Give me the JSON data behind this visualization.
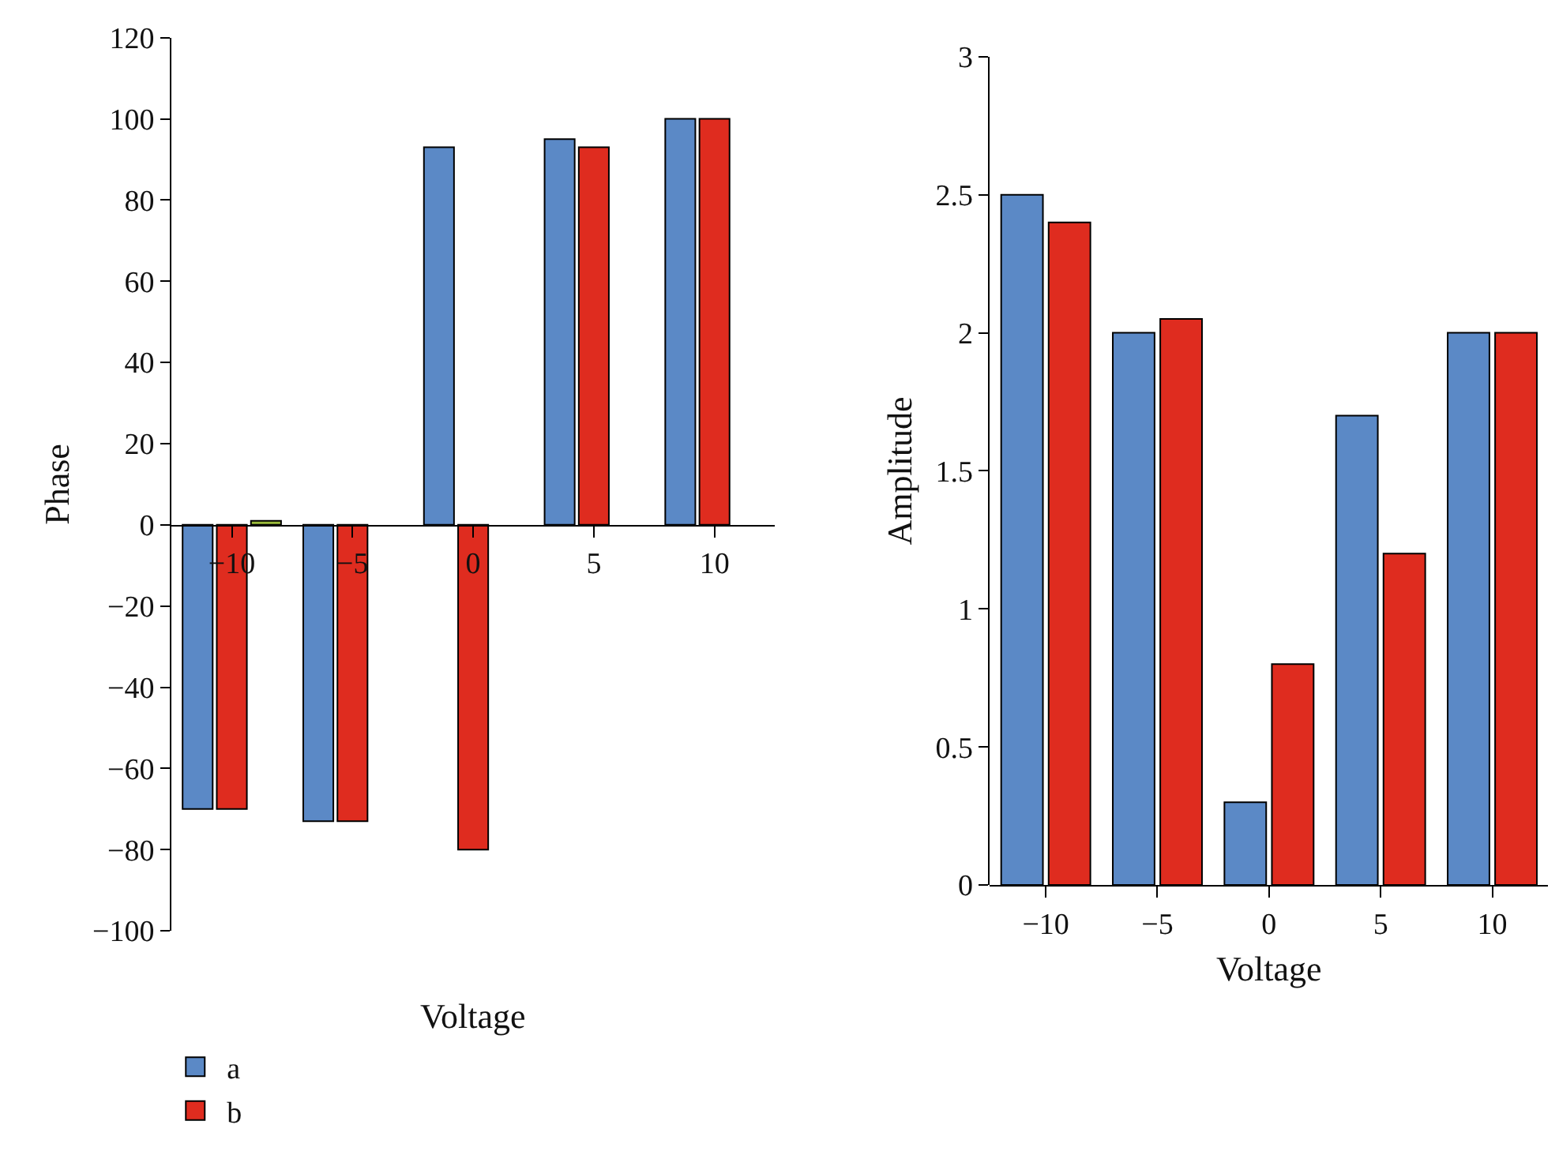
{
  "chart_data": [
    {
      "type": "bar",
      "xlabel": "Voltage",
      "ylabel": "Phase",
      "categories": [
        "−10",
        "−5",
        "0",
        "5",
        "10"
      ],
      "ylim": [
        -100,
        120
      ],
      "yticks": [
        {
          "value": -100,
          "label": "−100"
        },
        {
          "value": -80,
          "label": "−80"
        },
        {
          "value": -60,
          "label": "−60"
        },
        {
          "value": -40,
          "label": "−40"
        },
        {
          "value": -20,
          "label": "−20"
        },
        0,
        20,
        40,
        60,
        80,
        100,
        120
      ],
      "legend": "bottom left",
      "series": [
        {
          "name": "a",
          "color": "#5b89c6",
          "values": [
            -70,
            -73,
            93,
            95,
            100
          ]
        },
        {
          "name": "b",
          "color": "#df2c1f",
          "values": [
            -70,
            -73,
            -80,
            93,
            100
          ]
        },
        {
          "color": "#9bbb3b",
          "values": [
            1,
            null,
            null,
            null,
            null
          ]
        }
      ]
    },
    {
      "type": "bar",
      "xlabel": "Voltage",
      "ylabel": "Amplitude",
      "categories": [
        "−10",
        "−5",
        "0",
        "5",
        "10"
      ],
      "ylim": [
        0,
        3
      ],
      "yticks": [
        0,
        0.5,
        1,
        1.5,
        2,
        2.5,
        3
      ],
      "series": [
        {
          "color": "#5b89c6",
          "values": [
            2.5,
            2.0,
            0.3,
            1.7,
            2.0
          ]
        },
        {
          "color": "#df2c1f",
          "values": [
            2.4,
            2.05,
            0.8,
            1.2,
            2.0
          ]
        }
      ]
    }
  ]
}
